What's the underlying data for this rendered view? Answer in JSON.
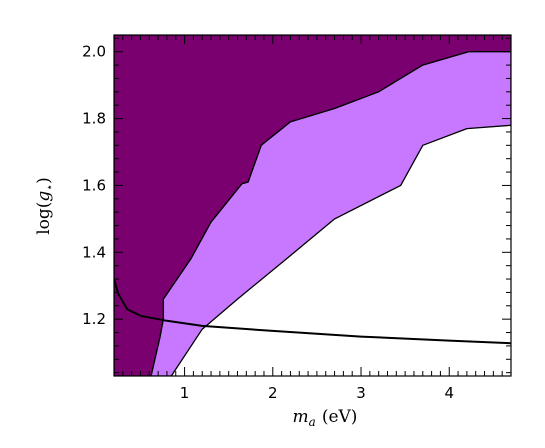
{
  "chart_data": {
    "type": "area",
    "title": "",
    "xlabel_main": "m",
    "xlabel_sub": "a",
    "xlabel_unit": "(eV)",
    "ylabel_prefix": "log(",
    "ylabel_main": "g",
    "ylabel_sub": "⋆",
    "ylabel_suffix": ")",
    "xlim": [
      0.2,
      4.7
    ],
    "ylim": [
      1.03,
      2.05
    ],
    "x_ticks": [
      1,
      2,
      3,
      4
    ],
    "x_tick_labels": [
      "1",
      "2",
      "3",
      "4"
    ],
    "y_ticks": [
      1.2,
      1.4,
      1.6,
      1.8,
      2.0
    ],
    "y_tick_labels": [
      "1.2",
      "1.4",
      "1.6",
      "1.8",
      "2.0"
    ],
    "grid": false,
    "legend": "none",
    "colors": {
      "excluded_region": "#7a006f",
      "allowed_band": "#c878ff",
      "background": "#ffffff",
      "curve": "#000000"
    },
    "series": [
      {
        "kind": "filled-region",
        "fill": "excluded_region",
        "boundary": [
          [
            0.2,
            2.05
          ],
          [
            4.7,
            2.05
          ],
          [
            4.7,
            2.0
          ],
          [
            4.22,
            2.0
          ],
          [
            3.7,
            1.96
          ],
          [
            3.2,
            1.88
          ],
          [
            2.7,
            1.83
          ],
          [
            2.2,
            1.79
          ],
          [
            1.87,
            1.72
          ],
          [
            1.72,
            1.61
          ],
          [
            1.65,
            1.605
          ],
          [
            1.3,
            1.49
          ],
          [
            1.07,
            1.38
          ],
          [
            0.76,
            1.26
          ],
          [
            0.76,
            1.2
          ],
          [
            0.72,
            1.145
          ],
          [
            0.62,
            1.03
          ],
          [
            0.2,
            1.03
          ]
        ]
      },
      {
        "kind": "filled-region",
        "fill": "allowed_band",
        "boundary": [
          [
            4.7,
            2.0
          ],
          [
            4.22,
            2.0
          ],
          [
            3.7,
            1.96
          ],
          [
            3.2,
            1.88
          ],
          [
            2.7,
            1.83
          ],
          [
            2.2,
            1.79
          ],
          [
            1.87,
            1.72
          ],
          [
            1.72,
            1.61
          ],
          [
            1.65,
            1.605
          ],
          [
            1.3,
            1.49
          ],
          [
            1.07,
            1.38
          ],
          [
            0.76,
            1.26
          ],
          [
            0.76,
            1.2
          ],
          [
            0.72,
            1.145
          ],
          [
            0.62,
            1.03
          ],
          [
            0.85,
            1.03
          ],
          [
            1.2,
            1.17
          ],
          [
            1.6,
            1.26
          ],
          [
            2.2,
            1.39
          ],
          [
            2.7,
            1.5
          ],
          [
            3.45,
            1.6
          ],
          [
            3.7,
            1.72
          ],
          [
            4.2,
            1.77
          ],
          [
            4.7,
            1.78
          ]
        ]
      },
      {
        "kind": "line",
        "color": "curve",
        "points": [
          [
            0.2,
            1.32
          ],
          [
            0.25,
            1.275
          ],
          [
            0.35,
            1.23
          ],
          [
            0.5,
            1.21
          ],
          [
            0.8,
            1.195
          ],
          [
            1.2,
            1.18
          ],
          [
            2.0,
            1.165
          ],
          [
            3.0,
            1.148
          ],
          [
            4.0,
            1.136
          ],
          [
            4.7,
            1.128
          ]
        ]
      }
    ]
  }
}
